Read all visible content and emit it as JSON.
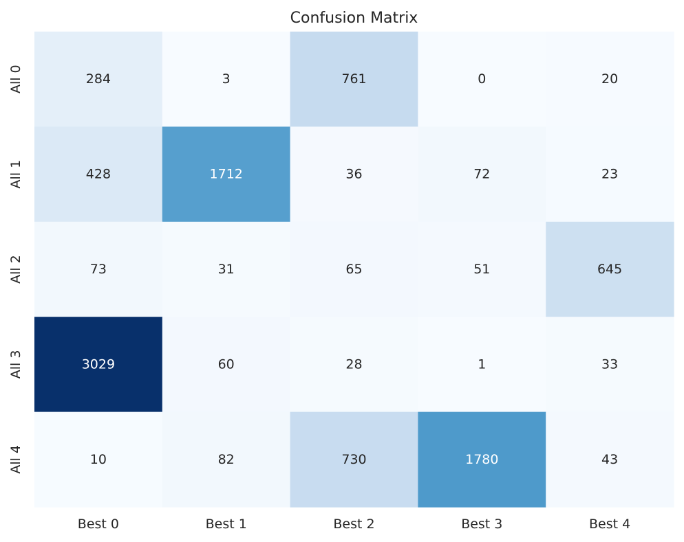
{
  "chart_data": {
    "type": "heatmap",
    "title": "Confusion Matrix",
    "xlabel": "",
    "ylabel": "",
    "x_categories": [
      "Best 0",
      "Best 1",
      "Best 2",
      "Best 3",
      "Best 4"
    ],
    "y_categories": [
      "All 0",
      "All 1",
      "All 2",
      "All 3",
      "All 4"
    ],
    "values": [
      [
        284,
        3,
        761,
        0,
        20
      ],
      [
        428,
        1712,
        36,
        72,
        23
      ],
      [
        73,
        31,
        65,
        51,
        645
      ],
      [
        3029,
        60,
        28,
        1,
        33
      ],
      [
        10,
        82,
        730,
        1780,
        43
      ]
    ],
    "colormap": "Blues",
    "color_range": [
      0,
      3029
    ],
    "colorbar": false,
    "grid": false,
    "annotations": true
  }
}
